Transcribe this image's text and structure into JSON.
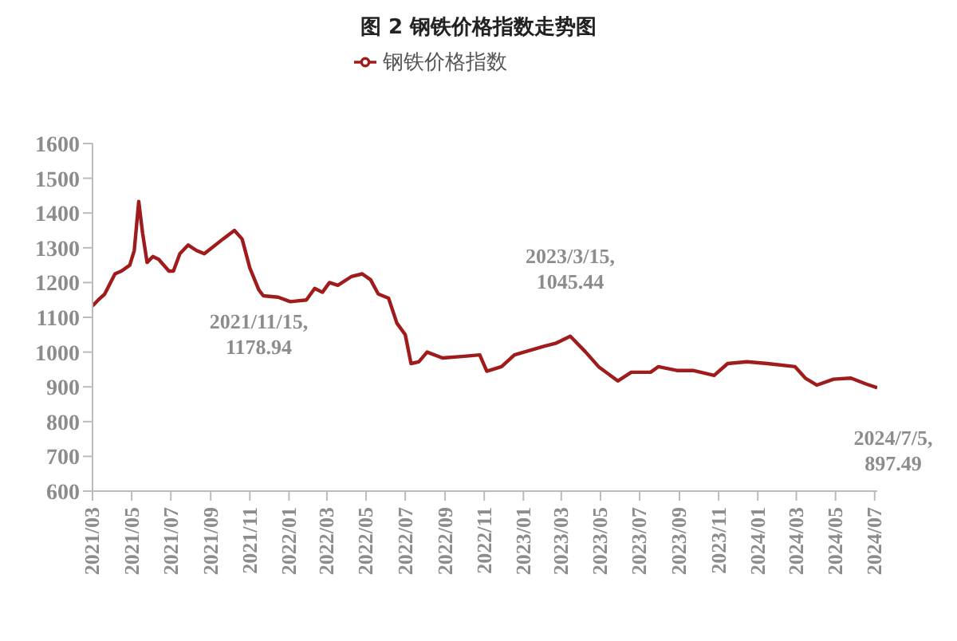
{
  "chart_data": {
    "type": "line",
    "title": "图 2 钢铁价格指数走势图",
    "x": [
      "2021-03-01",
      "2021-03-10",
      "2021-03-20",
      "2021-04-05",
      "2021-04-15",
      "2021-04-28",
      "2021-05-05",
      "2021-05-12",
      "2021-05-18",
      "2021-05-25",
      "2021-06-03",
      "2021-06-12",
      "2021-06-28",
      "2021-07-05",
      "2021-07-15",
      "2021-07-28",
      "2021-08-10",
      "2021-08-22",
      "2021-09-03",
      "2021-09-20",
      "2021-10-08",
      "2021-10-20",
      "2021-11-01",
      "2021-11-15",
      "2021-11-22",
      "2021-12-15",
      "2022-01-03",
      "2022-01-28",
      "2022-02-10",
      "2022-02-22",
      "2022-03-05",
      "2022-03-18",
      "2022-04-08",
      "2022-04-25",
      "2022-05-08",
      "2022-05-20",
      "2022-06-05",
      "2022-06-18",
      "2022-07-01",
      "2022-07-10",
      "2022-07-22",
      "2022-08-04",
      "2022-08-28",
      "2022-10-01",
      "2022-10-25",
      "2022-11-05",
      "2022-11-28",
      "2022-12-18",
      "2023-02-03",
      "2023-02-20",
      "2023-03-15",
      "2023-04-08",
      "2023-04-28",
      "2023-05-28",
      "2023-06-18",
      "2023-07-18",
      "2023-07-30",
      "2023-08-28",
      "2023-09-22",
      "2023-10-25",
      "2023-11-15",
      "2023-12-15",
      "2024-01-16",
      "2024-02-28",
      "2024-03-15",
      "2024-04-02",
      "2024-04-28",
      "2024-05-25",
      "2024-06-18",
      "2024-07-05"
    ],
    "series": [
      {
        "name": "钢铁价格指数",
        "color": "#a01c1c",
        "values": [
          1133,
          1150,
          1167,
          1225,
          1233,
          1250,
          1292,
          1433,
          1342,
          1258,
          1275,
          1267,
          1233,
          1233,
          1283,
          1308,
          1292,
          1283,
          1300,
          1325,
          1350,
          1325,
          1242,
          1178.94,
          1162,
          1158,
          1145,
          1150,
          1183,
          1172,
          1200,
          1192,
          1217,
          1225,
          1208,
          1167,
          1155,
          1083,
          1050,
          967,
          972,
          1000,
          983,
          988,
          992,
          945,
          958,
          992,
          1017,
          1025,
          1045.44,
          1000,
          958,
          917,
          942,
          942,
          958,
          947,
          947,
          933,
          967,
          972,
          967,
          958,
          925,
          905,
          922,
          925,
          908,
          897.49
        ]
      }
    ],
    "xlim": [
      "2021-03-01",
      "2024-07-05"
    ],
    "xticks": [
      {
        "value": "2021-03",
        "label": "2021/03"
      },
      {
        "value": "2021-05",
        "label": "2021/05"
      },
      {
        "value": "2021-07",
        "label": "2021/07"
      },
      {
        "value": "2021-09",
        "label": "2021/09"
      },
      {
        "value": "2021-11",
        "label": "2021/11"
      },
      {
        "value": "2022-01",
        "label": "2022/01"
      },
      {
        "value": "2022-03",
        "label": "2022/03"
      },
      {
        "value": "2022-05",
        "label": "2022/05"
      },
      {
        "value": "2022-07",
        "label": "2022/07"
      },
      {
        "value": "2022-09",
        "label": "2022/09"
      },
      {
        "value": "2022-11",
        "label": "2022/11"
      },
      {
        "value": "2023-01",
        "label": "2023/01"
      },
      {
        "value": "2023-03",
        "label": "2023/03"
      },
      {
        "value": "2023-05",
        "label": "2023/05"
      },
      {
        "value": "2023-07",
        "label": "2023/07"
      },
      {
        "value": "2023-09",
        "label": "2023/09"
      },
      {
        "value": "2023-11",
        "label": "2023/11"
      },
      {
        "value": "2024-01",
        "label": "2024/01"
      },
      {
        "value": "2024-03",
        "label": "2024/03"
      },
      {
        "value": "2024-05",
        "label": "2024/05"
      },
      {
        "value": "2024-07",
        "label": "2024/07"
      }
    ],
    "ylim": [
      600,
      1600
    ],
    "yticks": [
      600,
      700,
      800,
      900,
      1000,
      1100,
      1200,
      1300,
      1400,
      1500,
      1600
    ],
    "annotations": [
      {
        "text": "2021/11/15, 1178.94",
        "x": "2021-11-15",
        "y": 1178.94
      },
      {
        "text": "2023/3/15, 1045.44",
        "x": "2023-03-15",
        "y": 1045.44
      },
      {
        "text": "2024/7/5, 897.49",
        "x": "2024-07-05",
        "y": 897.49
      }
    ],
    "legend": "top",
    "grid": false,
    "marker": "none",
    "line_style": "solid"
  }
}
